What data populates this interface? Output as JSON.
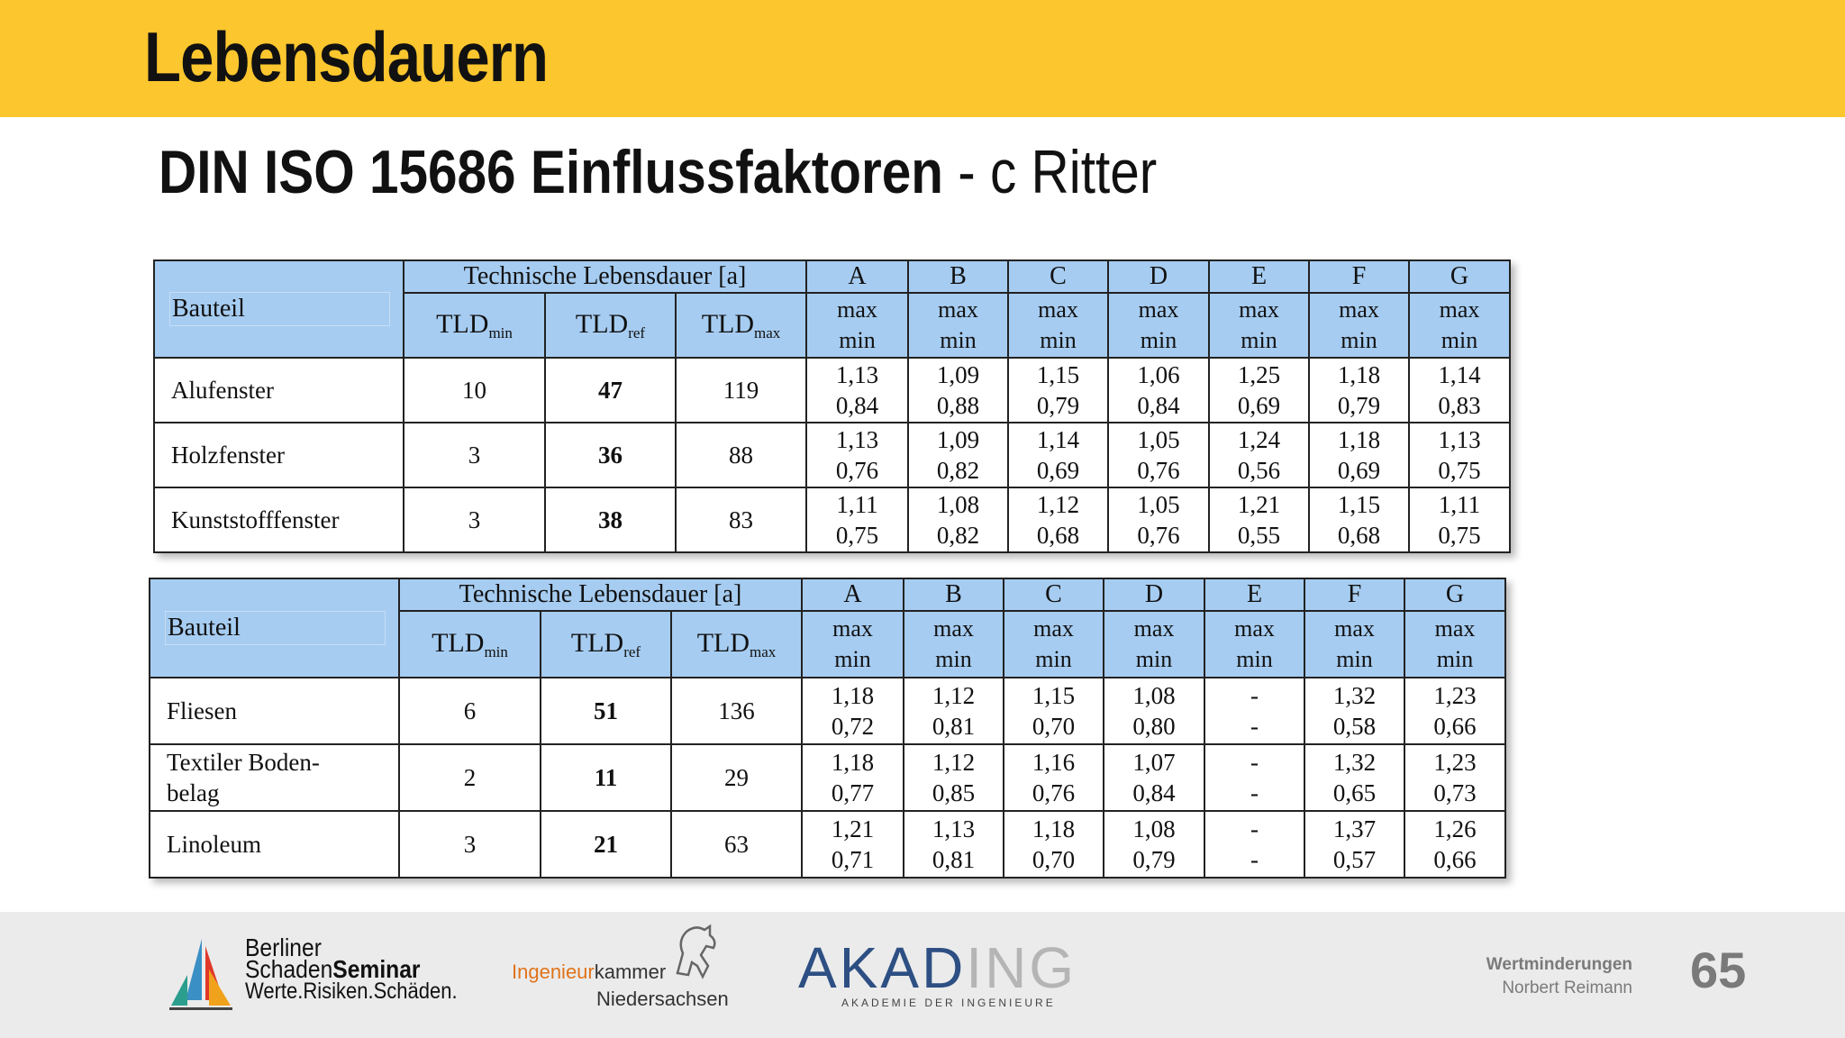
{
  "slide": {
    "title": "Lebensdauern",
    "subtitle_bold": "DIN ISO 15686 Einflussfaktoren",
    "subtitle_rest": "- c Ritter"
  },
  "table_header": {
    "bauteil": "Bauteil",
    "tld_group": "Technische Lebensdauer [a]",
    "tld_base": "TLD",
    "tld_min_sub": "min",
    "tld_ref_sub": "ref",
    "tld_max_sub": "max",
    "factors": [
      "A",
      "B",
      "C",
      "D",
      "E",
      "F",
      "G"
    ],
    "max_label": "max",
    "min_label": "min"
  },
  "tables": [
    {
      "rows": [
        {
          "name": "Alufenster",
          "min": "10",
          "ref": "47",
          "max": "119",
          "fmax": [
            "1,13",
            "1,09",
            "1,15",
            "1,06",
            "1,25",
            "1,18",
            "1,14"
          ],
          "fmin": [
            "0,84",
            "0,88",
            "0,79",
            "0,84",
            "0,69",
            "0,79",
            "0,83"
          ]
        },
        {
          "name": "Holzfenster",
          "min": "3",
          "ref": "36",
          "max": "88",
          "fmax": [
            "1,13",
            "1,09",
            "1,14",
            "1,05",
            "1,24",
            "1,18",
            "1,13"
          ],
          "fmin": [
            "0,76",
            "0,82",
            "0,69",
            "0,76",
            "0,56",
            "0,69",
            "0,75"
          ]
        },
        {
          "name": "Kunststofffenster",
          "min": "3",
          "ref": "38",
          "max": "83",
          "fmax": [
            "1,11",
            "1,08",
            "1,12",
            "1,05",
            "1,21",
            "1,15",
            "1,11"
          ],
          "fmin": [
            "0,75",
            "0,82",
            "0,68",
            "0,76",
            "0,55",
            "0,68",
            "0,75"
          ]
        }
      ]
    },
    {
      "rows": [
        {
          "name": "Fliesen",
          "min": "6",
          "ref": "51",
          "max": "136",
          "fmax": [
            "1,18",
            "1,12",
            "1,15",
            "1,08",
            "-",
            "1,32",
            "1,23"
          ],
          "fmin": [
            "0,72",
            "0,81",
            "0,70",
            "0,80",
            "-",
            "0,58",
            "0,66"
          ]
        },
        {
          "name": "Textiler Boden-\nbelag",
          "min": "2",
          "ref": "11",
          "max": "29",
          "fmax": [
            "1,18",
            "1,12",
            "1,16",
            "1,07",
            "-",
            "1,32",
            "1,23"
          ],
          "fmin": [
            "0,77",
            "0,85",
            "0,76",
            "0,84",
            "-",
            "0,65",
            "0,73"
          ]
        },
        {
          "name": "Linoleum",
          "min": "3",
          "ref": "21",
          "max": "63",
          "fmax": [
            "1,21",
            "1,13",
            "1,18",
            "1,08",
            "-",
            "1,37",
            "1,26"
          ],
          "fmin": [
            "0,71",
            "0,81",
            "0,70",
            "0,79",
            "-",
            "0,57",
            "0,66"
          ]
        }
      ]
    }
  ],
  "footer": {
    "bss_line1": "Berliner",
    "bss_line2_a": "Schaden",
    "bss_line2_b": "Seminar",
    "bss_line3": "Werte.Risiken.Schäden.",
    "ik_a": "Ingenieur",
    "ik_b": "kammer",
    "ik_line2": "Niedersachsen",
    "akad_a": "AKAD",
    "akad_b": "ING",
    "akad_sub": "AKADEMIE DER INGENIEURE",
    "topic": "Wertminderungen",
    "author": "Norbert Reimann",
    "page": "65"
  }
}
